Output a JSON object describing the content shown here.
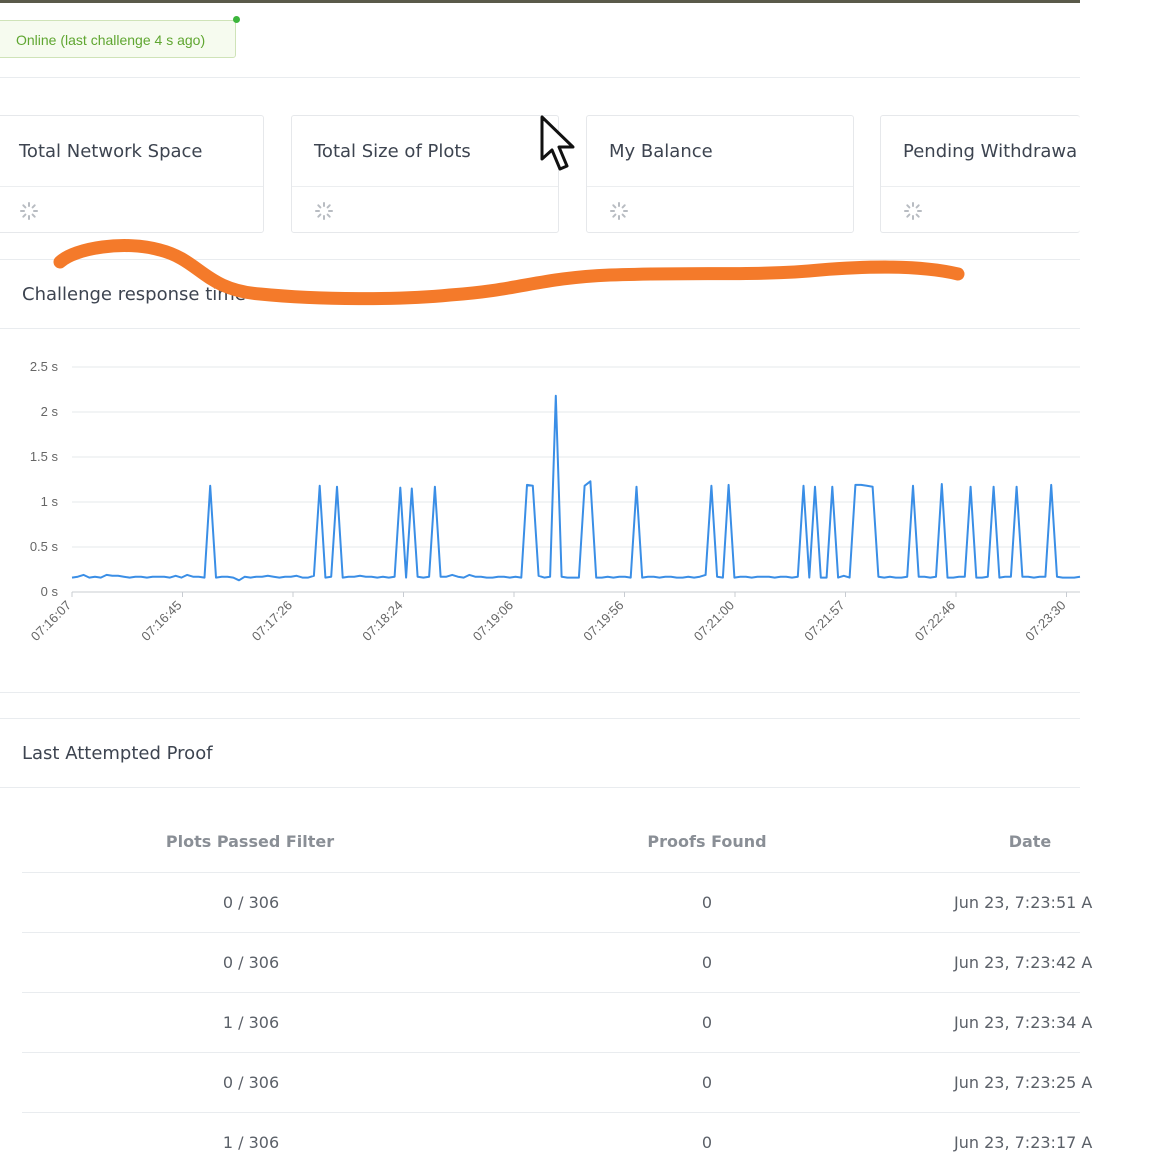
{
  "status": {
    "text": "Online (last challenge 4 s ago)"
  },
  "cards": [
    {
      "title": "Total Network Space"
    },
    {
      "title": "Total Size of Plots"
    },
    {
      "title": "My Balance"
    },
    {
      "title": "Pending Withdrawa"
    }
  ],
  "response_section": {
    "title": "Challenge response time"
  },
  "chart_data": {
    "type": "line",
    "title": "Challenge response time",
    "ylabel": "",
    "xlabel": "",
    "ylim": [
      0,
      2.5
    ],
    "yticks": [
      "0 s",
      "0.5 s",
      "1 s",
      "1.5 s",
      "2 s",
      "2.5 s"
    ],
    "xticks": [
      "07:16:07",
      "07:16:45",
      "07:17:26",
      "07:18:24",
      "07:19:06",
      "07:19:56",
      "07:21:00",
      "07:21:57",
      "07:22:46",
      "07:23:30"
    ],
    "grid": true,
    "series": [
      {
        "color": "#3a8ee6",
        "values": [
          0.16,
          0.17,
          0.19,
          0.16,
          0.17,
          0.16,
          0.19,
          0.18,
          0.18,
          0.17,
          0.16,
          0.17,
          0.17,
          0.16,
          0.17,
          0.17,
          0.17,
          0.16,
          0.18,
          0.16,
          0.19,
          0.17,
          0.17,
          0.16,
          1.18,
          0.16,
          0.17,
          0.17,
          0.16,
          0.13,
          0.17,
          0.16,
          0.17,
          0.17,
          0.18,
          0.17,
          0.16,
          0.17,
          0.17,
          0.18,
          0.16,
          0.16,
          0.18,
          1.18,
          0.16,
          0.17,
          1.17,
          0.16,
          0.17,
          0.17,
          0.18,
          0.17,
          0.17,
          0.16,
          0.17,
          0.16,
          0.17,
          1.16,
          0.16,
          1.15,
          0.17,
          0.16,
          0.17,
          1.17,
          0.17,
          0.17,
          0.19,
          0.17,
          0.16,
          0.19,
          0.17,
          0.17,
          0.16,
          0.16,
          0.17,
          0.17,
          0.16,
          0.17,
          0.16,
          1.19,
          1.18,
          0.18,
          0.16,
          0.17,
          2.18,
          0.17,
          0.16,
          0.16,
          0.16,
          1.18,
          1.23,
          0.16,
          0.16,
          0.17,
          0.16,
          0.17,
          0.17,
          0.16,
          1.17,
          0.16,
          0.17,
          0.17,
          0.16,
          0.17,
          0.17,
          0.16,
          0.16,
          0.17,
          0.16,
          0.17,
          0.19,
          1.18,
          0.17,
          0.16,
          1.19,
          0.16,
          0.17,
          0.17,
          0.16,
          0.17,
          0.17,
          0.17,
          0.16,
          0.17,
          0.17,
          0.16,
          0.17,
          1.18,
          0.16,
          1.17,
          0.16,
          0.16,
          1.17,
          0.16,
          0.18,
          0.16,
          1.19,
          1.19,
          1.18,
          1.17,
          0.17,
          0.16,
          0.17,
          0.16,
          0.16,
          0.17,
          1.18,
          0.17,
          0.17,
          0.16,
          0.17,
          1.2,
          0.16,
          0.16,
          0.17,
          0.17,
          1.17,
          0.16,
          0.16,
          0.17,
          1.17,
          0.16,
          0.17,
          0.17,
          1.17,
          0.17,
          0.17,
          0.16,
          0.17,
          0.17,
          1.19,
          0.17,
          0.16,
          0.16,
          0.16,
          0.17
        ]
      }
    ]
  },
  "proof_section": {
    "title": "Last Attempted Proof"
  },
  "table": {
    "headers": [
      "Plots Passed Filter",
      "Proofs Found",
      "Date"
    ],
    "rows": [
      [
        "0 / 306",
        "0",
        "Jun 23, 7:23:51 A"
      ],
      [
        "0 / 306",
        "0",
        "Jun 23, 7:23:42 A"
      ],
      [
        "1 / 306",
        "0",
        "Jun 23, 7:23:34 A"
      ],
      [
        "0 / 306",
        "0",
        "Jun 23, 7:23:25 A"
      ],
      [
        "1 / 306",
        "0",
        "Jun 23, 7:23:17 A"
      ]
    ]
  }
}
